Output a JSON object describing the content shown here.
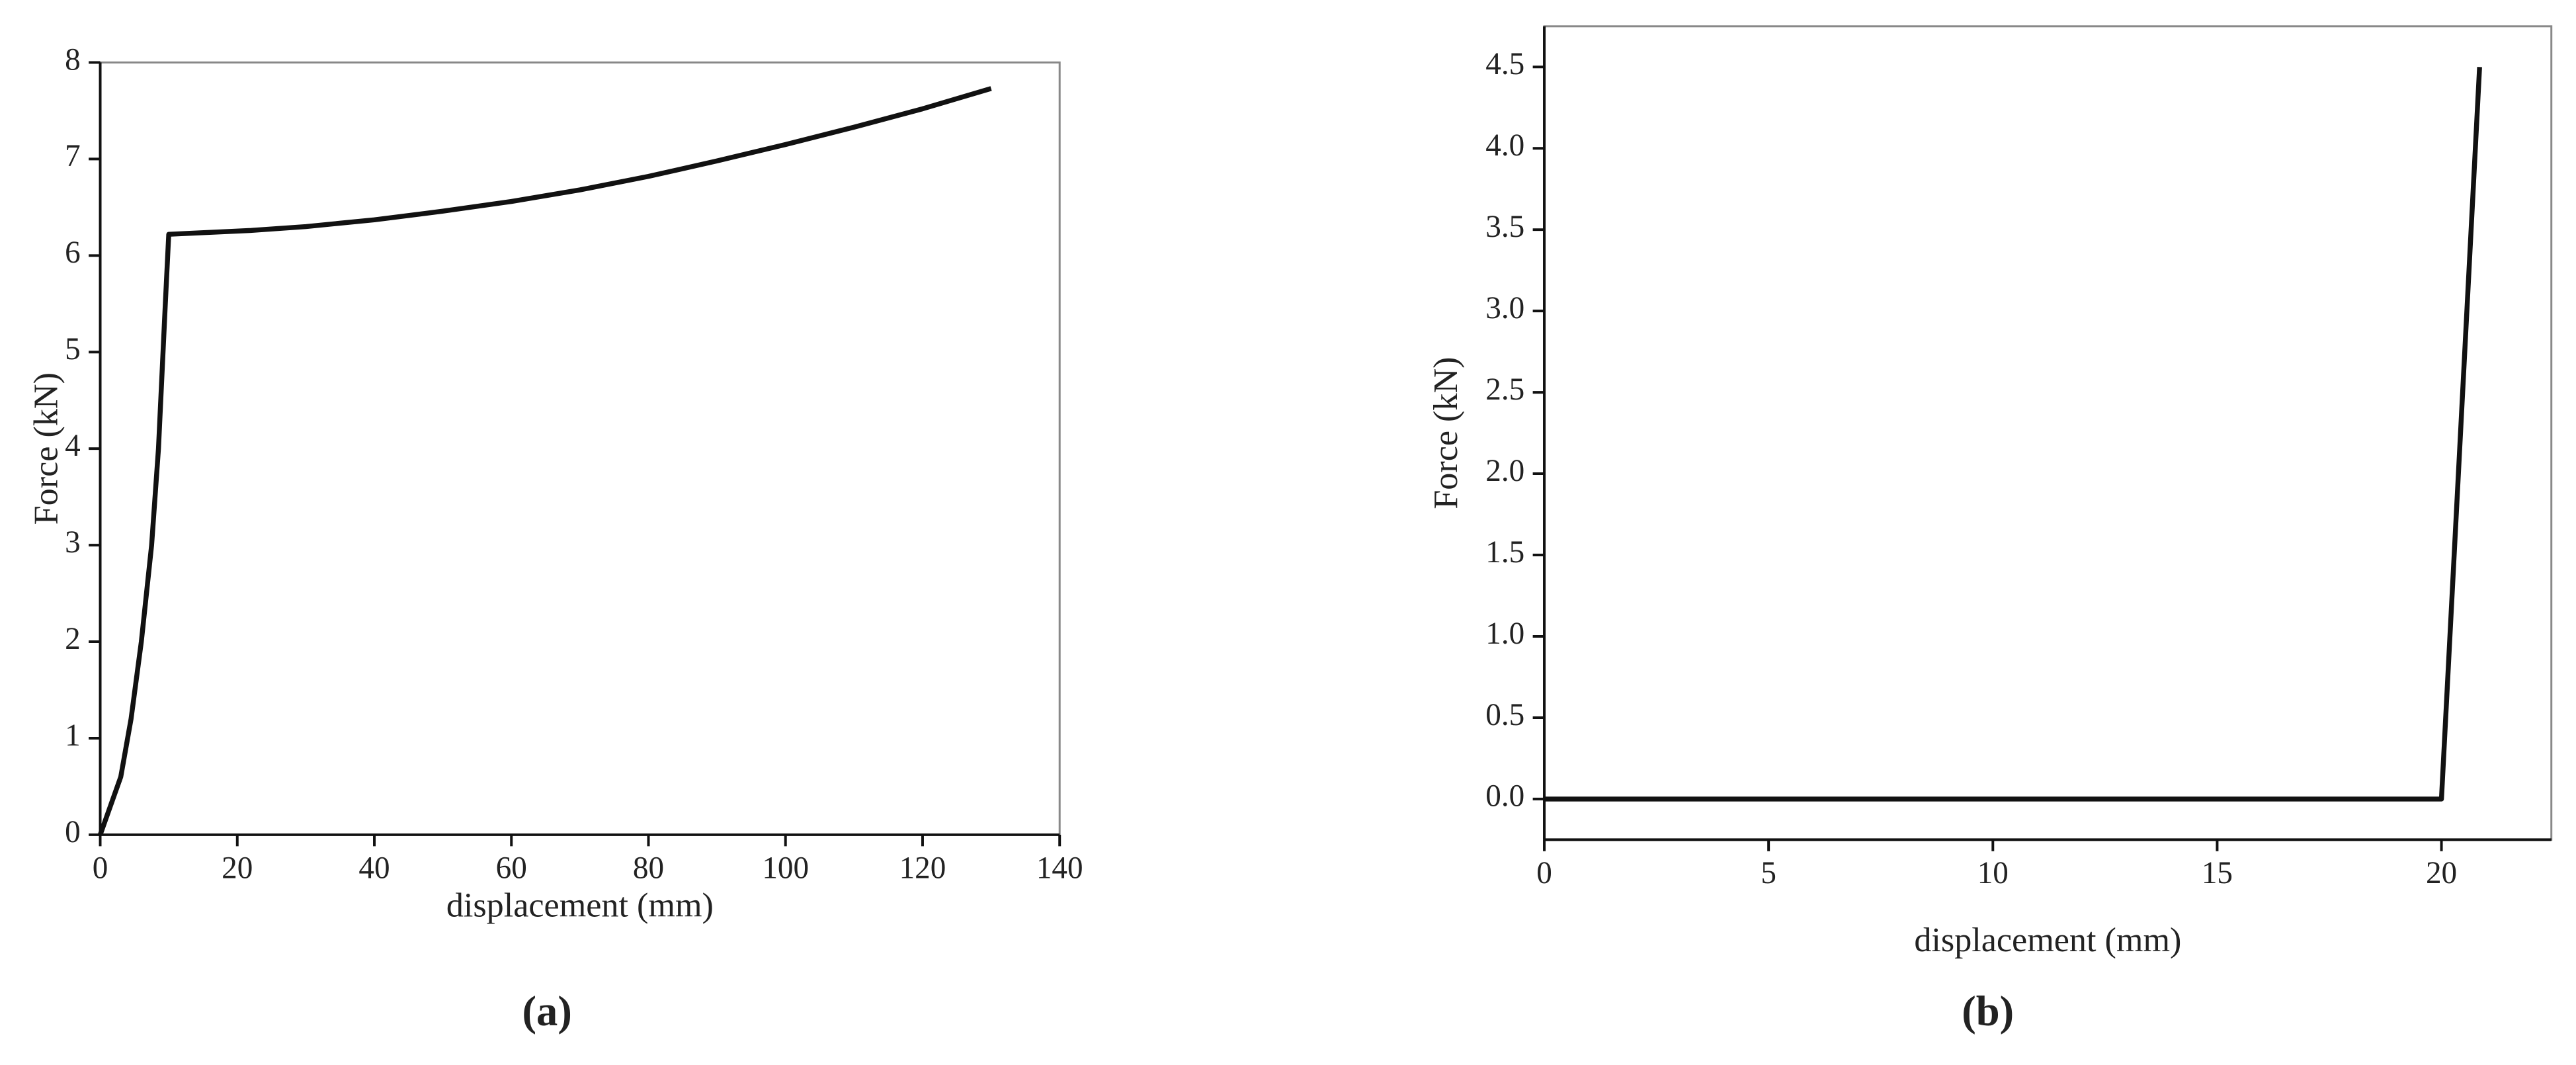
{
  "chart_data": [
    {
      "type": "line",
      "caption": "(a)",
      "x_label": "displacement (mm)",
      "y_label": "Force (kN)",
      "x": [
        0,
        3,
        4.5,
        6,
        7.5,
        8.5,
        9.5,
        10,
        22,
        30,
        40,
        50,
        60,
        70,
        80,
        90,
        100,
        110,
        120,
        130
      ],
      "values": [
        0,
        0.6,
        1.2,
        2,
        3,
        4,
        5.5,
        6.22,
        6.26,
        6.3,
        6.37,
        6.46,
        6.56,
        6.68,
        6.82,
        6.98,
        7.15,
        7.33,
        7.52,
        7.73
      ],
      "color": "#111111",
      "xlim": [
        0,
        140
      ],
      "ylim": [
        0,
        8
      ],
      "xticks": [
        0,
        20,
        40,
        60,
        80,
        100,
        120,
        140
      ],
      "yticks": [
        0,
        1,
        2,
        3,
        4,
        5,
        6,
        7,
        8
      ]
    },
    {
      "type": "line",
      "caption": "(b)",
      "x_label": "displacement (mm)",
      "y_label": "Force (kN)",
      "x": [
        0,
        20,
        20.85
      ],
      "values": [
        0,
        0,
        4.5
      ],
      "color": "#111111",
      "xlim": [
        0,
        22.45
      ],
      "ylim": [
        -0.25,
        4.75
      ],
      "xticks": [
        0,
        5,
        10,
        15,
        20
      ],
      "yticks": [
        {
          "value": 0,
          "label": "0.0"
        },
        {
          "value": 0.5,
          "label": "0.5"
        },
        {
          "value": 1,
          "label": "1.0"
        },
        {
          "value": 1.5,
          "label": "1.5"
        },
        {
          "value": 2,
          "label": "2.0"
        },
        {
          "value": 2.5,
          "label": "2.5"
        },
        {
          "value": 3,
          "label": "3.0"
        },
        {
          "value": 3.5,
          "label": "3.5"
        },
        {
          "value": 4,
          "label": "4.0"
        },
        {
          "value": 4.5,
          "label": "4.5"
        }
      ]
    }
  ]
}
